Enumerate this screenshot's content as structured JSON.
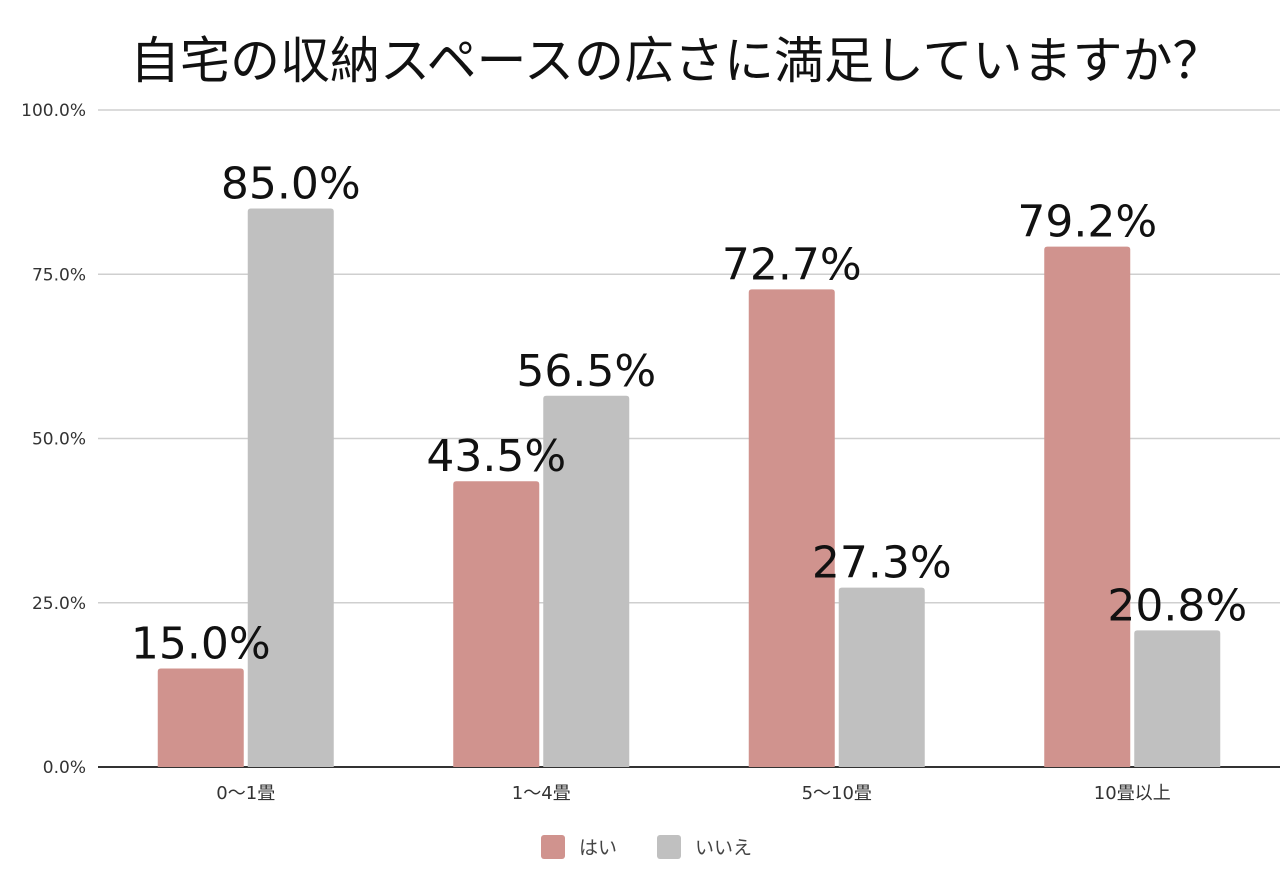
{
  "chart_data": {
    "type": "bar",
    "title": "自宅の収納スペースの広さに満足していますか？",
    "categories": [
      "0〜1畳",
      "1〜4畳",
      "5〜10畳",
      "10畳以上"
    ],
    "series": [
      {
        "name": "はい",
        "color": "#d0938e",
        "values": [
          15.0,
          43.5,
          72.7,
          79.2
        ]
      },
      {
        "name": "いいえ",
        "color": "#c0c0c0",
        "values": [
          85.0,
          56.5,
          27.3,
          20.8
        ]
      }
    ],
    "data_labels": [
      [
        "15.0%",
        "43.5%",
        "72.7%",
        "79.2%"
      ],
      [
        "85.0%",
        "56.5%",
        "27.3%",
        "20.8%"
      ]
    ],
    "yticks": [
      "0.0%",
      "25.0%",
      "50.0%",
      "75.0%",
      "100.0%"
    ],
    "ylim": [
      0,
      100
    ],
    "grid": true,
    "legend_position": "bottom",
    "xlabel": "",
    "ylabel": ""
  }
}
